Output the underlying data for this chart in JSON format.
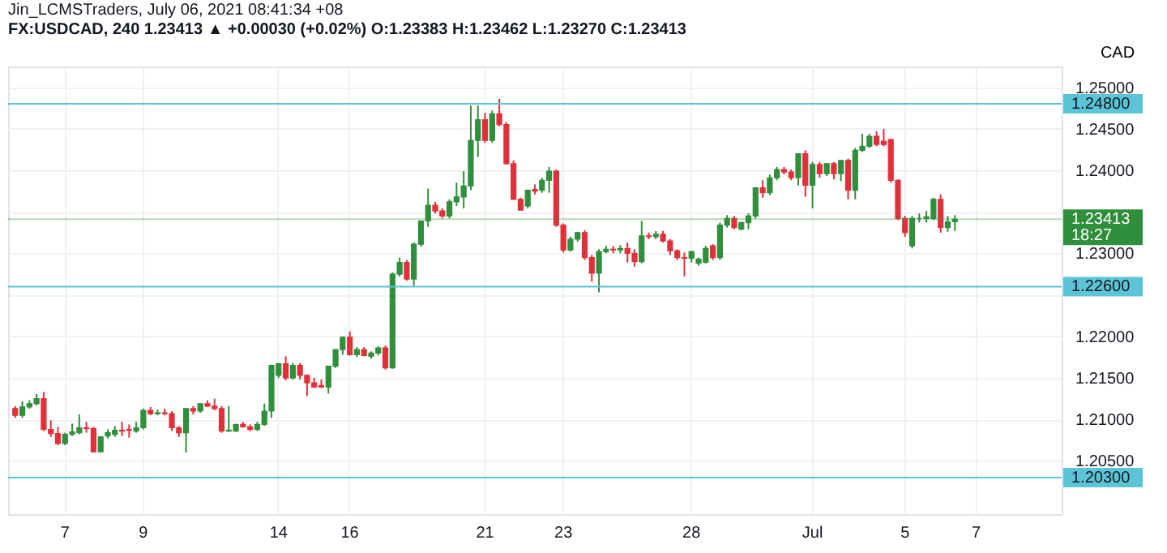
{
  "chart_data": {
    "type": "candlestick",
    "title": "Jin_LCMSTraders, July 06, 2021 08:41:34 +08",
    "subtitle": "FX:USDCAD, 240 1.23413 ▲ +0.00030 (+0.02%) O:1.23383 H:1.23462 L:1.23270 C:1.23413",
    "ylabel": "CAD",
    "categories": [
      null,
      null,
      null,
      null,
      null,
      null,
      null,
      "7",
      null,
      null,
      null,
      null,
      null,
      null,
      null,
      null,
      null,
      null,
      "9",
      null,
      null,
      null,
      null,
      null,
      null,
      null,
      null,
      null,
      null,
      null,
      null,
      null,
      null,
      null,
      null,
      null,
      null,
      "14",
      null,
      null,
      null,
      null,
      null,
      null,
      null,
      null,
      null,
      "16",
      null,
      null,
      null,
      null,
      null,
      null,
      null,
      null,
      null,
      null,
      null,
      null,
      null,
      null,
      null,
      null,
      null,
      null,
      "21",
      null,
      null,
      null,
      null,
      null,
      null,
      null,
      null,
      null,
      null,
      "23",
      null,
      null,
      null,
      null,
      null,
      null,
      null,
      null,
      null,
      null,
      null,
      null,
      null,
      null,
      null,
      null,
      null,
      "28",
      null,
      null,
      null,
      null,
      null,
      null,
      null,
      null,
      null,
      null,
      null,
      null,
      null,
      null,
      null,
      null,
      "Jul",
      null,
      null,
      null,
      null,
      null,
      null,
      null,
      null,
      null,
      null,
      null,
      null,
      "5",
      null,
      null,
      null,
      null,
      null,
      null,
      null,
      null,
      null,
      "7",
      null,
      null,
      null,
      null,
      null,
      null,
      null,
      null,
      null,
      null,
      null
    ],
    "ohlc": [
      [
        1.2113,
        1.2116,
        1.2102,
        1.2105
      ],
      [
        1.2105,
        1.2122,
        1.2102,
        1.2115
      ],
      [
        1.2115,
        1.2123,
        1.2113,
        1.2119
      ],
      [
        1.2119,
        1.2131,
        1.2117,
        1.2125
      ],
      [
        1.2125,
        1.2133,
        1.2086,
        1.2088
      ],
      [
        1.2088,
        1.2099,
        1.2079,
        1.2083
      ],
      [
        1.2083,
        1.2091,
        1.2069,
        1.2071
      ],
      [
        1.2071,
        1.2084,
        1.2069,
        1.2082
      ],
      [
        1.2082,
        1.2095,
        1.208,
        1.2085
      ],
      [
        1.2084,
        1.2106,
        1.2082,
        1.209
      ],
      [
        1.209,
        1.2097,
        1.2084,
        1.2089
      ],
      [
        1.2089,
        1.2091,
        1.206,
        1.2061
      ],
      [
        1.2061,
        1.208,
        1.206,
        1.2079
      ],
      [
        1.208,
        1.2088,
        1.2077,
        1.2084
      ],
      [
        1.2082,
        1.2092,
        1.2079,
        1.2087
      ],
      [
        1.2087,
        1.2097,
        1.208,
        1.2086
      ],
      [
        1.2088,
        1.2094,
        1.2078,
        1.2087
      ],
      [
        1.2086,
        1.2097,
        1.2084,
        1.209
      ],
      [
        1.209,
        1.2113,
        1.2088,
        1.2111
      ],
      [
        1.2111,
        1.2115,
        1.2105,
        1.2107
      ],
      [
        1.2107,
        1.2112,
        1.2105,
        1.2108
      ],
      [
        1.2108,
        1.2113,
        1.2105,
        1.2107
      ],
      [
        1.2107,
        1.211,
        1.2086,
        1.209
      ],
      [
        1.209,
        1.2092,
        1.2079,
        1.2084
      ],
      [
        1.2084,
        1.2113,
        1.206,
        1.2113
      ],
      [
        1.2113,
        1.2116,
        1.2106,
        1.211
      ],
      [
        1.211,
        1.2119,
        1.2108,
        1.2119
      ],
      [
        1.2119,
        1.2123,
        1.2115,
        1.2116
      ],
      [
        1.2116,
        1.2125,
        1.2111,
        1.2113
      ],
      [
        1.2113,
        1.2116,
        1.2084,
        1.2086
      ],
      [
        1.2086,
        1.2116,
        1.2085,
        1.2087
      ],
      [
        1.2086,
        1.2094,
        1.2085,
        1.2094
      ],
      [
        1.2094,
        1.2097,
        1.209,
        1.2091
      ],
      [
        1.2091,
        1.2094,
        1.2086,
        1.2088
      ],
      [
        1.2088,
        1.2097,
        1.2086,
        1.2094
      ],
      [
        1.2094,
        1.2119,
        1.2092,
        1.211
      ],
      [
        1.211,
        1.2166,
        1.2102,
        1.2165
      ],
      [
        1.2153,
        1.2168,
        1.215,
        1.2167
      ],
      [
        1.2167,
        1.2176,
        1.2147,
        1.215
      ],
      [
        1.215,
        1.2168,
        1.2148,
        1.2165
      ],
      [
        1.2165,
        1.2168,
        1.2148,
        1.2153
      ],
      [
        1.2153,
        1.2154,
        1.2128,
        1.2144
      ],
      [
        1.2144,
        1.215,
        1.2138,
        1.2139
      ],
      [
        1.2141,
        1.2148,
        1.2138,
        1.2139
      ],
      [
        1.2139,
        1.2164,
        1.2131,
        1.2164
      ],
      [
        1.2164,
        1.2184,
        1.2162,
        1.2184
      ],
      [
        1.2184,
        1.22,
        1.2178,
        1.2199
      ],
      [
        1.2199,
        1.2206,
        1.2177,
        1.2178
      ],
      [
        1.2178,
        1.2187,
        1.2175,
        1.2184
      ],
      [
        1.2184,
        1.2187,
        1.2176,
        1.2177
      ],
      [
        1.2176,
        1.2182,
        1.2173,
        1.218
      ],
      [
        1.218,
        1.2188,
        1.2177,
        1.2186
      ],
      [
        1.2186,
        1.2189,
        1.216,
        1.2162
      ],
      [
        1.2162,
        1.2277,
        1.2161,
        1.2275
      ],
      [
        1.2275,
        1.2295,
        1.2272,
        1.2289
      ],
      [
        1.2289,
        1.2292,
        1.2267,
        1.2269
      ],
      [
        1.2269,
        1.2313,
        1.2261,
        1.2311
      ],
      [
        1.2311,
        1.2339,
        1.2308,
        1.2339
      ],
      [
        1.2339,
        1.2378,
        1.2332,
        1.2358
      ],
      [
        1.2358,
        1.2362,
        1.2348,
        1.2351
      ],
      [
        1.2351,
        1.2354,
        1.2342,
        1.2345
      ],
      [
        1.2345,
        1.2365,
        1.2342,
        1.2362
      ],
      [
        1.2362,
        1.2385,
        1.2357,
        1.2368
      ],
      [
        1.2368,
        1.2399,
        1.2354,
        1.2381
      ],
      [
        1.2381,
        1.2478,
        1.2376,
        1.2436
      ],
      [
        1.2436,
        1.2478,
        1.2416,
        1.2461
      ],
      [
        1.2461,
        1.2469,
        1.2433,
        1.2436
      ],
      [
        1.2436,
        1.2472,
        1.2433,
        1.2468
      ],
      [
        1.2468,
        1.2486,
        1.2453,
        1.2455
      ],
      [
        1.2455,
        1.2458,
        1.2407,
        1.2408
      ],
      [
        1.2408,
        1.2412,
        1.2365,
        1.2365
      ],
      [
        1.2365,
        1.2367,
        1.2352,
        1.2352
      ],
      [
        1.2357,
        1.2376,
        1.2354,
        1.2376
      ],
      [
        1.2377,
        1.2383,
        1.2371,
        1.2375
      ],
      [
        1.2376,
        1.2391,
        1.2373,
        1.2388
      ],
      [
        1.2388,
        1.2404,
        1.2373,
        1.2399
      ],
      [
        1.2399,
        1.2401,
        1.2332,
        1.2334
      ],
      [
        1.2334,
        1.2336,
        1.2301,
        1.2304
      ],
      [
        1.2304,
        1.232,
        1.2302,
        1.2317
      ],
      [
        1.2317,
        1.2326,
        1.2314,
        1.2325
      ],
      [
        1.2325,
        1.2328,
        1.2292,
        1.2295
      ],
      [
        1.2295,
        1.2298,
        1.2266,
        1.2276
      ],
      [
        1.2276,
        1.2305,
        1.2253,
        1.2302
      ],
      [
        1.2302,
        1.2309,
        1.23,
        1.2305
      ],
      [
        1.2305,
        1.2309,
        1.23,
        1.2304
      ],
      [
        1.2304,
        1.231,
        1.23,
        1.2306
      ],
      [
        1.2306,
        1.2313,
        1.2289,
        1.23
      ],
      [
        1.23,
        1.2305,
        1.2284,
        1.229
      ],
      [
        1.229,
        1.2339,
        1.2288,
        1.2321
      ],
      [
        1.2321,
        1.2325,
        1.2317,
        1.232
      ],
      [
        1.232,
        1.2327,
        1.2317,
        1.2323
      ],
      [
        1.2323,
        1.2327,
        1.2313,
        1.2315
      ],
      [
        1.2315,
        1.2317,
        1.2298,
        1.2303
      ],
      [
        1.2303,
        1.2305,
        1.2292,
        1.2295
      ],
      [
        1.2295,
        1.2301,
        1.2272,
        1.2294
      ],
      [
        1.2294,
        1.2303,
        1.2289,
        1.2302
      ],
      [
        1.2288,
        1.2295,
        1.2285,
        1.2293
      ],
      [
        1.2289,
        1.2309,
        1.2288,
        1.2306
      ],
      [
        1.2309,
        1.2311,
        1.2292,
        1.2295
      ],
      [
        1.2295,
        1.2337,
        1.2292,
        1.2334
      ],
      [
        1.2334,
        1.2346,
        1.2331,
        1.2342
      ],
      [
        1.2342,
        1.2345,
        1.2329,
        1.2331
      ],
      [
        1.2329,
        1.2338,
        1.2328,
        1.2337
      ],
      [
        1.2337,
        1.2348,
        1.2329,
        1.2345
      ],
      [
        1.2345,
        1.2379,
        1.2342,
        1.2379
      ],
      [
        1.2379,
        1.2388,
        1.2367,
        1.2373
      ],
      [
        1.2373,
        1.2395,
        1.237,
        1.2391
      ],
      [
        1.2391,
        1.2404,
        1.2388,
        1.2401
      ],
      [
        1.2401,
        1.2404,
        1.2395,
        1.2398
      ],
      [
        1.2398,
        1.2401,
        1.2388,
        1.2391
      ],
      [
        1.2391,
        1.242,
        1.2382,
        1.242
      ],
      [
        1.242,
        1.2424,
        1.2368,
        1.2382
      ],
      [
        1.2382,
        1.241,
        1.2354,
        1.2407
      ],
      [
        1.2407,
        1.241,
        1.2391,
        1.2396
      ],
      [
        1.2396,
        1.2408,
        1.2393,
        1.2408
      ],
      [
        1.2408,
        1.241,
        1.2389,
        1.2396
      ],
      [
        1.2396,
        1.2412,
        1.2387,
        1.2412
      ],
      [
        1.2412,
        1.2414,
        1.2365,
        1.2376
      ],
      [
        1.2376,
        1.2427,
        1.2365,
        1.2424
      ],
      [
        1.2424,
        1.2444,
        1.2422,
        1.2429
      ],
      [
        1.2429,
        1.2444,
        1.2427,
        1.2441
      ],
      [
        1.2441,
        1.2447,
        1.2429,
        1.2431
      ],
      [
        1.2435,
        1.245,
        1.2429,
        1.2431
      ],
      [
        1.2437,
        1.2438,
        1.2385,
        1.2388
      ],
      [
        1.2388,
        1.2389,
        1.234,
        1.2342
      ],
      [
        1.2342,
        1.2345,
        1.232,
        1.2325
      ],
      [
        1.2309,
        1.2345,
        1.2306,
        1.2342
      ],
      [
        1.2342,
        1.2348,
        1.2337,
        1.2342
      ],
      [
        1.2342,
        1.2351,
        1.2337,
        1.2344
      ],
      [
        1.2342,
        1.2367,
        1.234,
        1.2365
      ],
      [
        1.2365,
        1.2371,
        1.2325,
        1.2331
      ],
      [
        1.2331,
        1.2345,
        1.2326,
        1.2338
      ],
      [
        1.2338,
        1.2346,
        1.2327,
        1.2341
      ],
      null,
      null,
      null,
      null,
      null,
      null,
      null,
      null,
      null,
      null,
      null,
      null,
      null,
      null
    ],
    "colors": [
      "#e0313a",
      "#2f8f3c",
      "#2f8f3c",
      "#2f8f3c",
      "#e0313a",
      "#e0313a",
      "#e0313a",
      "#2f8f3c",
      "#2f8f3c",
      "#2f8f3c",
      "#e0313a",
      "#e0313a",
      "#2f8f3c",
      "#2f8f3c",
      "#2f8f3c",
      "#e0313a",
      "#e0313a",
      "#2f8f3c",
      "#2f8f3c",
      "#e0313a",
      "#2f8f3c",
      "#e0313a",
      "#e0313a",
      "#e0313a",
      "#2f8f3c",
      "#e0313a",
      "#2f8f3c",
      "#e0313a",
      "#e0313a",
      "#e0313a",
      "#2f8f3c",
      "#2f8f3c",
      "#e0313a",
      "#e0313a",
      "#2f8f3c",
      "#2f8f3c",
      "#2f8f3c",
      "#2f8f3c",
      "#e0313a",
      "#2f8f3c",
      "#e0313a",
      "#e0313a",
      "#e0313a",
      "#e0313a",
      "#2f8f3c",
      "#2f8f3c",
      "#2f8f3c",
      "#e0313a",
      "#2f8f3c",
      "#e0313a",
      "#2f8f3c",
      "#2f8f3c",
      "#e0313a",
      "#2f8f3c",
      "#2f8f3c",
      "#e0313a",
      "#2f8f3c",
      "#2f8f3c",
      "#2f8f3c",
      "#e0313a",
      "#e0313a",
      "#2f8f3c",
      "#2f8f3c",
      "#2f8f3c",
      "#2f8f3c",
      "#2f8f3c",
      "#e0313a",
      "#2f8f3c",
      "#e0313a",
      "#e0313a",
      "#e0313a",
      "#e0313a",
      "#2f8f3c",
      "#e0313a",
      "#2f8f3c",
      "#2f8f3c",
      "#e0313a",
      "#e0313a",
      "#2f8f3c",
      "#2f8f3c",
      "#e0313a",
      "#e0313a",
      "#2f8f3c",
      "#2f8f3c",
      "#e0313a",
      "#2f8f3c",
      "#e0313a",
      "#e0313a",
      "#2f8f3c",
      "#e0313a",
      "#2f8f3c",
      "#e0313a",
      "#e0313a",
      "#e0313a",
      "#e0313a",
      "#2f8f3c",
      "#2f8f3c",
      "#2f8f3c",
      "#e0313a",
      "#2f8f3c",
      "#2f8f3c",
      "#e0313a",
      "#2f8f3c",
      "#2f8f3c",
      "#2f8f3c",
      "#e0313a",
      "#2f8f3c",
      "#2f8f3c",
      "#e0313a",
      "#e0313a",
      "#2f8f3c",
      "#e0313a",
      "#2f8f3c",
      "#e0313a",
      "#2f8f3c",
      "#e0313a",
      "#2f8f3c",
      "#e0313a",
      "#2f8f3c",
      "#2f8f3c",
      "#2f8f3c",
      "#e0313a",
      "#e0313a",
      "#e0313a",
      "#e0313a",
      "#e0313a",
      "#2f8f3c",
      "#2f8f3c",
      "#2f8f3c",
      "#2f8f3c",
      "#e0313a",
      "#2f8f3c",
      "#2f8f3c",
      null,
      null,
      null,
      null,
      null,
      null,
      null,
      null,
      null,
      null,
      null,
      null,
      null,
      null
    ],
    "ylim": [
      1.1986,
      1.2525
    ],
    "yticks": [
      {
        "value": 1.205,
        "label": "1.20500"
      },
      {
        "value": 1.21,
        "label": "1.21000"
      },
      {
        "value": 1.215,
        "label": "1.21500"
      },
      {
        "value": 1.22,
        "label": "1.22000"
      },
      {
        "value": 1.225,
        "label": null
      },
      {
        "value": 1.23,
        "label": "1.23000"
      },
      {
        "value": 1.235,
        "label": null
      },
      {
        "value": 1.24,
        "label": "1.24000"
      },
      {
        "value": 1.245,
        "label": "1.24500"
      },
      {
        "value": 1.25,
        "label": "1.25000"
      }
    ],
    "ref_lines": [
      {
        "axis": "y",
        "value": 1.248,
        "label": "1.24800",
        "color": "#5bc4d6"
      },
      {
        "axis": "y",
        "value": 1.226,
        "label": "1.22600",
        "color": "#5bc4d6"
      },
      {
        "axis": "y",
        "value": 1.203,
        "label": "1.20300",
        "color": "#5bc4d6"
      },
      {
        "axis": "y",
        "value": 1.23413,
        "label": "1.23413\n18:27",
        "color": "#2f8f3c"
      }
    ],
    "grid": true
  }
}
